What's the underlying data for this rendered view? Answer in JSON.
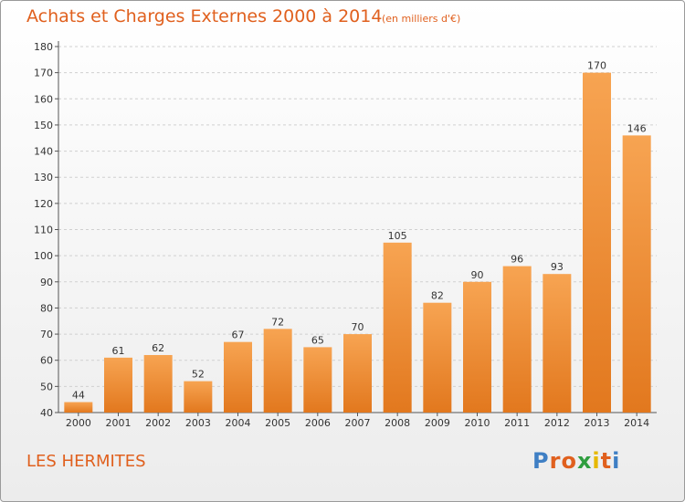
{
  "header": {
    "title": "Achats et Charges Externes 2000 à 2014",
    "unit": "(en milliers d'€)"
  },
  "footer": {
    "location": "LES HERMITES",
    "logo_text": "Proxiti",
    "logo_colors": [
      "#3f7fc4",
      "#e0601e",
      "#e0601e",
      "#2f9e3f",
      "#e6b800",
      "#e0601e",
      "#3f7fc4"
    ]
  },
  "colors": {
    "accent": "#e0601e",
    "bar_top": "#f7a452",
    "bar_bottom": "#e2781e"
  },
  "chart_data": {
    "type": "bar",
    "categories": [
      "2000",
      "2001",
      "2002",
      "2003",
      "2004",
      "2005",
      "2006",
      "2007",
      "2008",
      "2009",
      "2010",
      "2011",
      "2012",
      "2013",
      "2014"
    ],
    "values": [
      44,
      61,
      62,
      52,
      67,
      72,
      65,
      70,
      105,
      82,
      90,
      96,
      93,
      170,
      146
    ],
    "ylim": [
      40,
      180
    ],
    "yticks": [
      40,
      50,
      60,
      70,
      80,
      90,
      100,
      110,
      120,
      130,
      140,
      150,
      160,
      170,
      180
    ],
    "grid": true,
    "data_labels": true
  }
}
